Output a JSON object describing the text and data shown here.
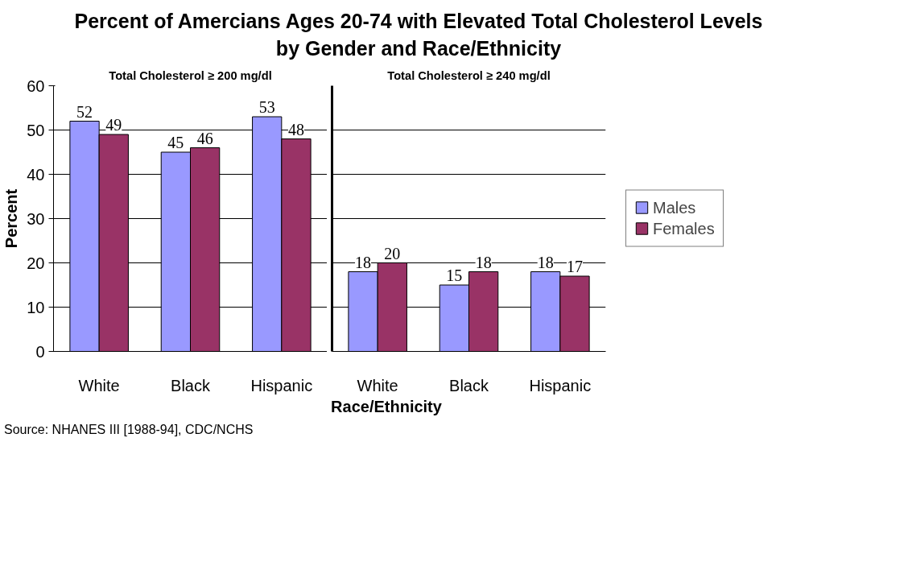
{
  "chart_data": [
    {
      "type": "bar",
      "title": "Percent of Amercians Ages 20-74 with Elevated Total Cholesterol Levels by Gender and Race/Ethnicity",
      "subtitle": "Total Cholesterol ≥ 200 mg/dl",
      "xlabel": "Race/Ethnicity",
      "ylabel": "Percent",
      "categories": [
        "White",
        "Black",
        "Hispanic"
      ],
      "series": [
        {
          "color": "#9999ff",
          "values": [
            52,
            45,
            53
          ]
        },
        {
          "color": "#993366",
          "values": [
            49,
            46,
            48
          ]
        }
      ],
      "ylim": [
        0,
        60
      ],
      "yticks": [
        0,
        10,
        20,
        30,
        40,
        50,
        60
      ],
      "grid": "y",
      "data_labels": true,
      "annotations": [
        "Source: NHANES III [1988-94], CDC/NCHS"
      ]
    },
    {
      "type": "bar",
      "subtitle": "Total Cholesterol ≥ 240 mg/dl",
      "categories": [
        "White",
        "Black",
        "Hispanic"
      ],
      "series": [
        {
          "name": "Males",
          "color": "#9999ff",
          "values": [
            18,
            15,
            18
          ]
        },
        {
          "name": "Females",
          "color": "#993366",
          "values": [
            20,
            18,
            17
          ]
        }
      ],
      "ylim": [
        0,
        60
      ],
      "yticks": [
        0,
        10,
        20,
        30,
        40,
        50,
        60
      ],
      "grid": "y",
      "legend": "right",
      "data_labels": true,
      "tick_labels": "x"
    }
  ]
}
